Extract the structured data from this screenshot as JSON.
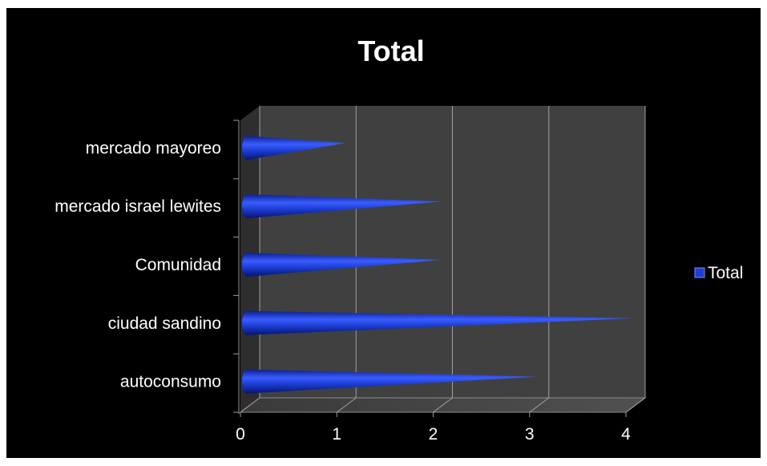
{
  "chart_data": {
    "type": "bar",
    "style": "3d-cone-horizontal",
    "title": "Total",
    "xlabel": "",
    "ylabel": "",
    "categories": [
      "mercado mayoreo",
      "mercado israel lewites",
      "Comunidad",
      "ciudad sandino",
      "autoconsumo"
    ],
    "series": [
      {
        "name": "Total",
        "values": [
          1,
          2,
          2,
          4,
          3
        ]
      }
    ],
    "xlim": [
      0,
      4
    ],
    "x_ticks": [
      "0",
      "1",
      "2",
      "3",
      "4"
    ],
    "grid": true,
    "legend_position": "right",
    "colors": {
      "background": "#000000",
      "plot_wall": "#404040",
      "cone": "#1f3fd0",
      "gridline": "#a0a0a0",
      "text": "#ffffff"
    }
  }
}
